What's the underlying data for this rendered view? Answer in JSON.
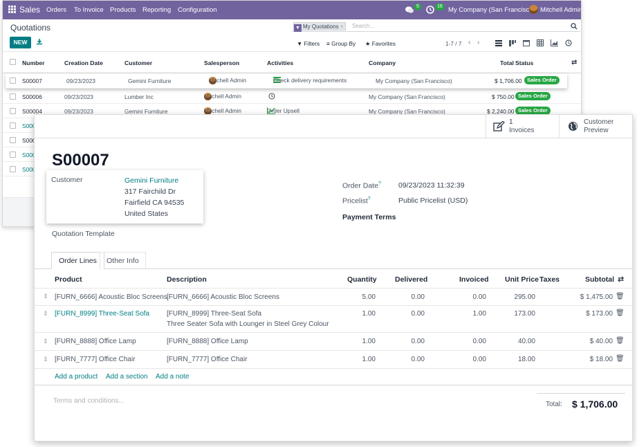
{
  "navbar": {
    "app_name": "Sales",
    "menus": [
      "Orders",
      "To Invoice",
      "Products",
      "Reporting",
      "Configuration"
    ],
    "chat_count": "5",
    "activity_count": "16",
    "company": "My Company (San Francisco)",
    "user": "Mitchell Admin",
    "accent": "#71639e"
  },
  "control_panel": {
    "title": "Quotations",
    "new_label": "NEW",
    "facet": "My Quotations",
    "search_placeholder": "Search...",
    "filters_label": "Filters",
    "groupby_label": "Group By",
    "favorites_label": "Favorites",
    "pager": "1-7 / 7"
  },
  "list": {
    "headers": {
      "number": "Number",
      "creation_date": "Creation Date",
      "customer": "Customer",
      "salesperson": "Salesperson",
      "activities": "Activities",
      "company": "Company",
      "total": "Total",
      "status": "Status"
    },
    "rows": [
      {
        "number": "S00007",
        "date": "09/23/2023",
        "customer": "Gemini Furniture",
        "salesperson": "Mitchell Admin",
        "activity": "Check delivery requirements",
        "company": "My Company (San Francisco)",
        "total": "$ 1,706.00",
        "status": "Sales Order"
      },
      {
        "number": "S00006",
        "date": "09/23/2023",
        "customer": "Lumber Inc",
        "salesperson": "Mitchell Admin",
        "activity": "",
        "company": "My Company (San Francisco)",
        "total": "$ 750.00",
        "status": "Sales Order"
      },
      {
        "number": "S00004",
        "date": "09/23/2023",
        "customer": "Gemini Furniture",
        "salesperson": "Mitchell Admin",
        "activity": "Order Upsell",
        "company": "My Company (San Francisco)",
        "total": "$ 2,240.00",
        "status": "Sales Order"
      }
    ],
    "partial_rows": [
      "S000",
      "S000",
      "S000",
      "S000"
    ]
  },
  "form": {
    "smart_buttons": {
      "invoices_count": "1",
      "invoices_label": "Invoices",
      "preview_line1": "Customer",
      "preview_line2": "Preview"
    },
    "order_name": "S00007",
    "customer_label": "Customer",
    "customer_name": "Gemini Furniture",
    "address_line1": "317 Fairchild Dr",
    "address_line2": "Fairfield CA 94535",
    "address_line3": "United States",
    "order_date_label": "Order Date",
    "order_date": "09/23/2023 11:32:39",
    "pricelist_label": "Pricelist",
    "pricelist": "Public Pricelist (USD)",
    "payment_terms_label": "Payment Terms",
    "quotation_template_label": "Quotation Template",
    "help_mark": "?",
    "tabs": [
      "Order Lines",
      "Other Info"
    ],
    "columns": {
      "product": "Product",
      "description": "Description",
      "quantity": "Quantity",
      "delivered": "Delivered",
      "invoiced": "Invoiced",
      "unit_price": "Unit Price",
      "taxes": "Taxes",
      "subtotal": "Subtotal"
    },
    "lines": [
      {
        "product": "[FURN_6666] Acoustic Bloc Screens",
        "description": "[FURN_6666] Acoustic Bloc Screens",
        "description2": "",
        "quantity": "5.00",
        "delivered": "0.00",
        "invoiced": "0.00",
        "unit_price": "295.00",
        "subtotal": "$ 1,475.00"
      },
      {
        "product": "[FURN_8999] Three-Seat Sofa",
        "description": "[FURN_8999] Three-Seat Sofa",
        "description2": "Three Seater Sofa with Lounger in Steel Grey Colour",
        "quantity": "1.00",
        "delivered": "0.00",
        "invoiced": "1.00",
        "unit_price": "173.00",
        "subtotal": "$ 173.00"
      },
      {
        "product": "[FURN_8888] Office Lamp",
        "description": "[FURN_8888] Office Lamp",
        "description2": "",
        "quantity": "1.00",
        "delivered": "0.00",
        "invoiced": "0.00",
        "unit_price": "40.00",
        "subtotal": "$ 40.00"
      },
      {
        "product": "[FURN_7777] Office Chair",
        "description": "[FURN_7777] Office Chair",
        "description2": "",
        "quantity": "1.00",
        "delivered": "0.00",
        "invoiced": "0.00",
        "unit_price": "18.00",
        "subtotal": "$ 18.00"
      }
    ],
    "add_product": "Add a product",
    "add_section": "Add a section",
    "add_note": "Add a note",
    "terms_placeholder": "Terms and conditions...",
    "total_label": "Total:",
    "total_value": "$ 1,706.00"
  }
}
